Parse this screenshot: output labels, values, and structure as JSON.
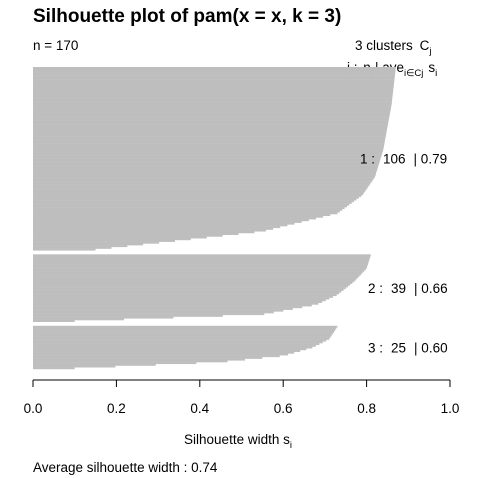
{
  "chart_data": {
    "type": "silhouette",
    "title": "Silhouette plot of pam(x = x, k = 3)",
    "n_label": "n = 170",
    "clusters_header": {
      "count": "3",
      "text": "clusters",
      "c": "C",
      "c_sub": "j"
    },
    "legend_header": {
      "j": "j",
      "colon": ":",
      "n": "n",
      "n_sub": "j",
      "bar": "|",
      "ave": "ave",
      "ave_sub": "i∈Cj",
      "s": "s",
      "s_sub": "i"
    },
    "xlabel": "Silhouette width s",
    "xlabel_sub": "i",
    "xlim": [
      0,
      1
    ],
    "xticks": [
      "0.0",
      "0.2",
      "0.4",
      "0.6",
      "0.8",
      "1.0"
    ],
    "bar_color": "#bebebe",
    "clusters": [
      {
        "id": 1,
        "size": 106,
        "avg_width": 0.79,
        "label": "1 :",
        "size_label": "106",
        "avg_label": "|  0.79",
        "profile": [
          [
            0,
            0.87
          ],
          [
            0.2,
            0.86
          ],
          [
            0.45,
            0.84
          ],
          [
            0.6,
            0.82
          ],
          [
            0.7,
            0.79
          ],
          [
            0.8,
            0.73
          ],
          [
            0.9,
            0.55
          ],
          [
            0.95,
            0.35
          ],
          [
            1,
            0.15
          ]
        ]
      },
      {
        "id": 2,
        "size": 39,
        "avg_width": 0.66,
        "label": "2 :",
        "size_label": "39",
        "avg_label": "|  0.66",
        "profile": [
          [
            0,
            0.81
          ],
          [
            0.2,
            0.8
          ],
          [
            0.4,
            0.77
          ],
          [
            0.6,
            0.73
          ],
          [
            0.75,
            0.68
          ],
          [
            0.9,
            0.55
          ],
          [
            1,
            0.1
          ]
        ]
      },
      {
        "id": 3,
        "size": 25,
        "avg_width": 0.6,
        "label": "3 :",
        "size_label": "25",
        "avg_label": "|  0.60",
        "profile": [
          [
            0,
            0.73
          ],
          [
            0.3,
            0.71
          ],
          [
            0.5,
            0.67
          ],
          [
            0.7,
            0.6
          ],
          [
            0.85,
            0.45
          ],
          [
            1,
            0.1
          ]
        ]
      }
    ],
    "footer_label": "Average silhouette width :",
    "footer_value": "0.74"
  }
}
